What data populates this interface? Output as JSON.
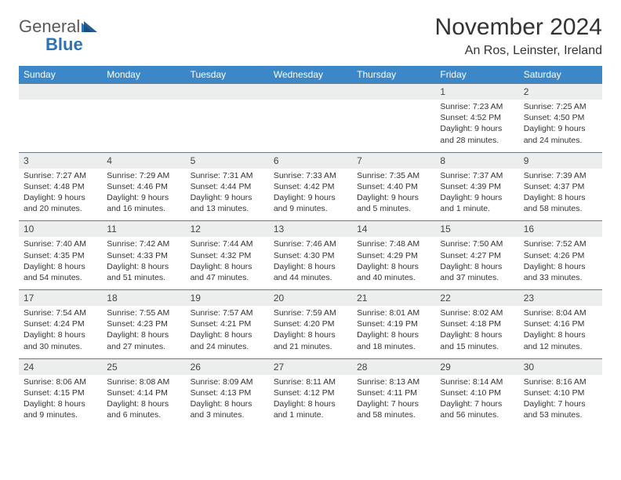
{
  "logo": {
    "word1": "General",
    "word2": "Blue"
  },
  "title": "November 2024",
  "location": "An Ros, Leinster, Ireland",
  "colors": {
    "header_bg": "#3b87c8",
    "header_text": "#ffffff",
    "daynum_bg": "#eceded",
    "daynum_border": "#6a7a88",
    "body_text": "#333333",
    "logo_gray": "#5a5a5a",
    "logo_blue": "#2b72b8"
  },
  "day_headers": [
    "Sunday",
    "Monday",
    "Tuesday",
    "Wednesday",
    "Thursday",
    "Friday",
    "Saturday"
  ],
  "weeks": [
    {
      "nums": [
        "",
        "",
        "",
        "",
        "",
        "1",
        "2"
      ],
      "cells": [
        "",
        "",
        "",
        "",
        "",
        "Sunrise: 7:23 AM\nSunset: 4:52 PM\nDaylight: 9 hours and 28 minutes.",
        "Sunrise: 7:25 AM\nSunset: 4:50 PM\nDaylight: 9 hours and 24 minutes."
      ]
    },
    {
      "nums": [
        "3",
        "4",
        "5",
        "6",
        "7",
        "8",
        "9"
      ],
      "cells": [
        "Sunrise: 7:27 AM\nSunset: 4:48 PM\nDaylight: 9 hours and 20 minutes.",
        "Sunrise: 7:29 AM\nSunset: 4:46 PM\nDaylight: 9 hours and 16 minutes.",
        "Sunrise: 7:31 AM\nSunset: 4:44 PM\nDaylight: 9 hours and 13 minutes.",
        "Sunrise: 7:33 AM\nSunset: 4:42 PM\nDaylight: 9 hours and 9 minutes.",
        "Sunrise: 7:35 AM\nSunset: 4:40 PM\nDaylight: 9 hours and 5 minutes.",
        "Sunrise: 7:37 AM\nSunset: 4:39 PM\nDaylight: 9 hours and 1 minute.",
        "Sunrise: 7:39 AM\nSunset: 4:37 PM\nDaylight: 8 hours and 58 minutes."
      ]
    },
    {
      "nums": [
        "10",
        "11",
        "12",
        "13",
        "14",
        "15",
        "16"
      ],
      "cells": [
        "Sunrise: 7:40 AM\nSunset: 4:35 PM\nDaylight: 8 hours and 54 minutes.",
        "Sunrise: 7:42 AM\nSunset: 4:33 PM\nDaylight: 8 hours and 51 minutes.",
        "Sunrise: 7:44 AM\nSunset: 4:32 PM\nDaylight: 8 hours and 47 minutes.",
        "Sunrise: 7:46 AM\nSunset: 4:30 PM\nDaylight: 8 hours and 44 minutes.",
        "Sunrise: 7:48 AM\nSunset: 4:29 PM\nDaylight: 8 hours and 40 minutes.",
        "Sunrise: 7:50 AM\nSunset: 4:27 PM\nDaylight: 8 hours and 37 minutes.",
        "Sunrise: 7:52 AM\nSunset: 4:26 PM\nDaylight: 8 hours and 33 minutes."
      ]
    },
    {
      "nums": [
        "17",
        "18",
        "19",
        "20",
        "21",
        "22",
        "23"
      ],
      "cells": [
        "Sunrise: 7:54 AM\nSunset: 4:24 PM\nDaylight: 8 hours and 30 minutes.",
        "Sunrise: 7:55 AM\nSunset: 4:23 PM\nDaylight: 8 hours and 27 minutes.",
        "Sunrise: 7:57 AM\nSunset: 4:21 PM\nDaylight: 8 hours and 24 minutes.",
        "Sunrise: 7:59 AM\nSunset: 4:20 PM\nDaylight: 8 hours and 21 minutes.",
        "Sunrise: 8:01 AM\nSunset: 4:19 PM\nDaylight: 8 hours and 18 minutes.",
        "Sunrise: 8:02 AM\nSunset: 4:18 PM\nDaylight: 8 hours and 15 minutes.",
        "Sunrise: 8:04 AM\nSunset: 4:16 PM\nDaylight: 8 hours and 12 minutes."
      ]
    },
    {
      "nums": [
        "24",
        "25",
        "26",
        "27",
        "28",
        "29",
        "30"
      ],
      "cells": [
        "Sunrise: 8:06 AM\nSunset: 4:15 PM\nDaylight: 8 hours and 9 minutes.",
        "Sunrise: 8:08 AM\nSunset: 4:14 PM\nDaylight: 8 hours and 6 minutes.",
        "Sunrise: 8:09 AM\nSunset: 4:13 PM\nDaylight: 8 hours and 3 minutes.",
        "Sunrise: 8:11 AM\nSunset: 4:12 PM\nDaylight: 8 hours and 1 minute.",
        "Sunrise: 8:13 AM\nSunset: 4:11 PM\nDaylight: 7 hours and 58 minutes.",
        "Sunrise: 8:14 AM\nSunset: 4:10 PM\nDaylight: 7 hours and 56 minutes.",
        "Sunrise: 8:16 AM\nSunset: 4:10 PM\nDaylight: 7 hours and 53 minutes."
      ]
    }
  ]
}
